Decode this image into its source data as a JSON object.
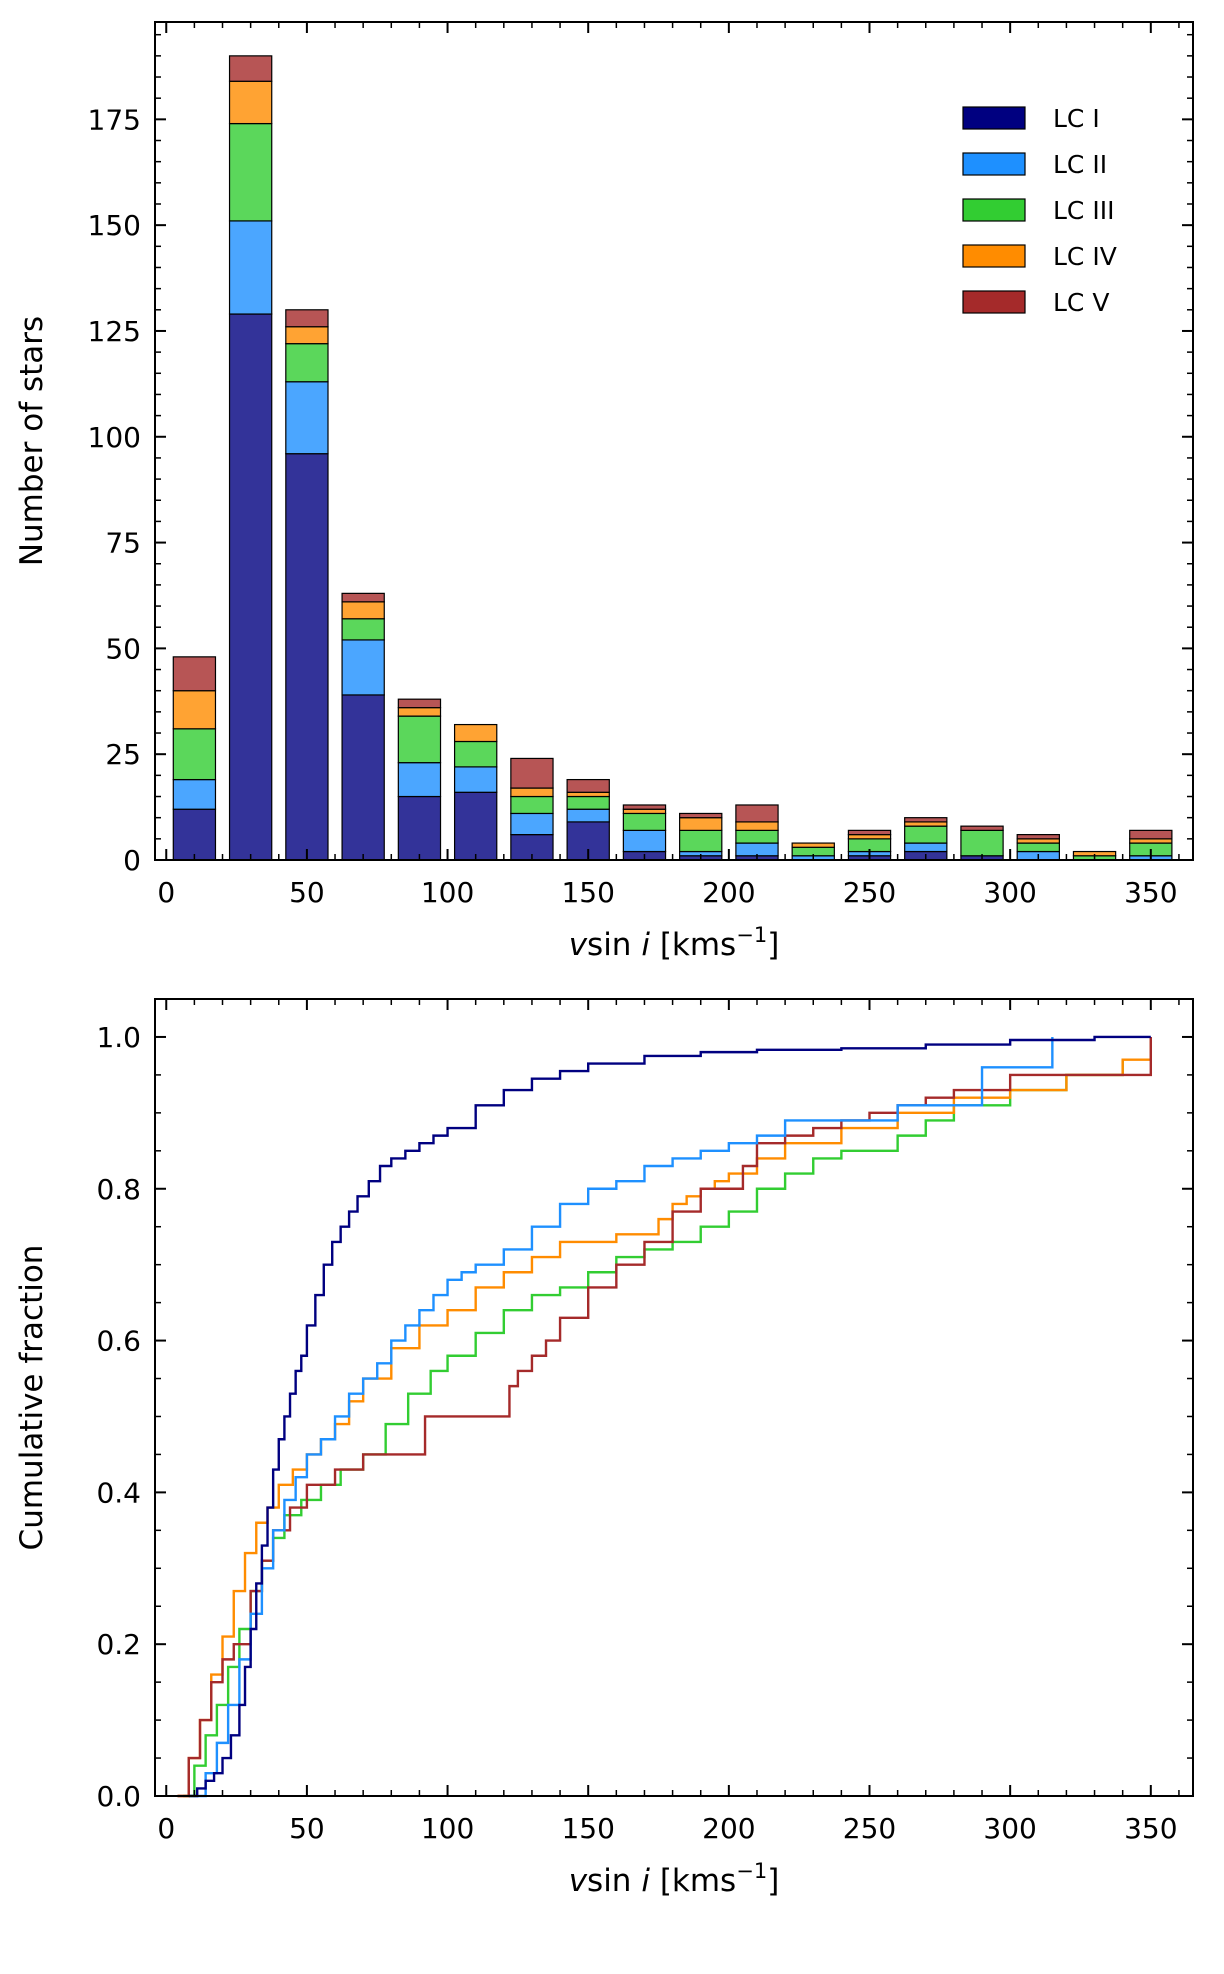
{
  "chart_data": [
    {
      "type": "bar",
      "stacked": true,
      "title": "",
      "xlabel_var": "v",
      "xlabel_sin": "sin",
      "xlabel_i": "i",
      "xlabel_unit": "[kms",
      "xlabel_exp": "−1",
      "xlabel_close": "]",
      "ylabel": "Number of stars",
      "xlim": [
        -4,
        365
      ],
      "ylim": [
        0,
        198
      ],
      "bin_width": 20,
      "bar_width": 15,
      "categories": [
        10,
        30,
        50,
        70,
        90,
        110,
        130,
        150,
        170,
        190,
        210,
        230,
        250,
        270,
        290,
        310,
        330,
        350
      ],
      "xticks": [
        0,
        50,
        100,
        150,
        200,
        250,
        300,
        350
      ],
      "xtick_labels": [
        "0",
        "50",
        "100",
        "150",
        "200",
        "250",
        "300",
        "350"
      ],
      "yticks": [
        0,
        25,
        50,
        75,
        100,
        125,
        150,
        175
      ],
      "ytick_labels": [
        "0",
        "25",
        "50",
        "75",
        "100",
        "125",
        "150",
        "175"
      ],
      "legend_position": "upper right",
      "series": [
        {
          "name": "LC I",
          "color": "#000080",
          "fill": "#333399",
          "values": [
            12,
            129,
            96,
            39,
            15,
            16,
            6,
            9,
            2,
            1,
            1,
            0,
            1,
            2,
            1,
            0,
            0,
            0
          ]
        },
        {
          "name": "LC II",
          "color": "#1e90ff",
          "fill": "#4ba6ff",
          "values": [
            7,
            22,
            17,
            13,
            8,
            6,
            5,
            3,
            5,
            1,
            3,
            1,
            1,
            2,
            0,
            2,
            0,
            1
          ]
        },
        {
          "name": "LC III",
          "color": "#32cd32",
          "fill": "#5bd75b",
          "values": [
            12,
            23,
            9,
            5,
            11,
            6,
            4,
            3,
            4,
            5,
            3,
            2,
            3,
            4,
            6,
            2,
            1,
            3
          ]
        },
        {
          "name": "LC IV",
          "color": "#ff8c00",
          "fill": "#ffa333",
          "values": [
            9,
            10,
            4,
            4,
            2,
            4,
            2,
            1,
            1,
            3,
            2,
            1,
            1,
            1,
            0,
            1,
            1,
            1
          ]
        },
        {
          "name": "LC V",
          "color": "#a52a2a",
          "fill": "#b75555",
          "values": [
            8,
            6,
            4,
            2,
            2,
            0,
            7,
            3,
            1,
            1,
            4,
            0,
            1,
            1,
            1,
            1,
            0,
            2
          ]
        }
      ]
    },
    {
      "type": "line",
      "step": true,
      "title": "",
      "xlabel_var": "v",
      "xlabel_sin": "sin",
      "xlabel_i": "i",
      "xlabel_unit": "[kms",
      "xlabel_exp": "−1",
      "xlabel_close": "]",
      "ylabel": "Cumulative fraction",
      "xlim": [
        -4,
        365
      ],
      "ylim": [
        0,
        1.05
      ],
      "xticks": [
        0,
        50,
        100,
        150,
        200,
        250,
        300,
        350
      ],
      "xtick_labels": [
        "0",
        "50",
        "100",
        "150",
        "200",
        "250",
        "300",
        "350"
      ],
      "yticks": [
        0,
        0.2,
        0.4,
        0.6,
        0.8,
        1.0
      ],
      "ytick_labels": [
        "0.0",
        "0.2",
        "0.4",
        "0.6",
        "0.8",
        "1.0"
      ],
      "series": [
        {
          "name": "LC I",
          "color": "#000080",
          "x": [
            8,
            11,
            14,
            17,
            20,
            23,
            26,
            28,
            30,
            32,
            34,
            36,
            38,
            40,
            42,
            44,
            46,
            48,
            50,
            53,
            56,
            59,
            62,
            65,
            68,
            72,
            76,
            80,
            85,
            90,
            95,
            100,
            110,
            120,
            130,
            140,
            150,
            170,
            190,
            210,
            240,
            270,
            300,
            330,
            350
          ],
          "y": [
            0,
            0.01,
            0.02,
            0.03,
            0.05,
            0.08,
            0.12,
            0.17,
            0.22,
            0.28,
            0.33,
            0.38,
            0.43,
            0.47,
            0.5,
            0.53,
            0.56,
            0.58,
            0.62,
            0.66,
            0.7,
            0.73,
            0.75,
            0.77,
            0.79,
            0.81,
            0.83,
            0.84,
            0.85,
            0.86,
            0.87,
            0.88,
            0.91,
            0.93,
            0.945,
            0.955,
            0.965,
            0.975,
            0.98,
            0.983,
            0.985,
            0.99,
            0.996,
            1.0,
            1.0
          ]
        },
        {
          "name": "LC II",
          "color": "#1e90ff",
          "x": [
            10,
            14,
            18,
            22,
            26,
            30,
            34,
            38,
            42,
            46,
            50,
            55,
            60,
            65,
            70,
            75,
            80,
            85,
            90,
            95,
            100,
            105,
            110,
            120,
            130,
            140,
            150,
            160,
            170,
            180,
            190,
            200,
            210,
            220,
            260,
            290,
            315
          ],
          "y": [
            0,
            0.03,
            0.07,
            0.12,
            0.18,
            0.24,
            0.3,
            0.35,
            0.39,
            0.42,
            0.45,
            0.47,
            0.5,
            0.53,
            0.55,
            0.57,
            0.6,
            0.62,
            0.64,
            0.66,
            0.68,
            0.69,
            0.7,
            0.72,
            0.75,
            0.78,
            0.8,
            0.81,
            0.83,
            0.84,
            0.85,
            0.86,
            0.87,
            0.89,
            0.91,
            0.96,
            1.0
          ]
        },
        {
          "name": "LC III",
          "color": "#32cd32",
          "x": [
            6,
            10,
            14,
            18,
            22,
            26,
            30,
            34,
            38,
            42,
            48,
            55,
            62,
            70,
            78,
            86,
            94,
            100,
            110,
            120,
            130,
            140,
            150,
            160,
            170,
            180,
            190,
            200,
            210,
            220,
            230,
            240,
            260,
            270,
            280,
            300,
            320,
            340
          ],
          "y": [
            0,
            0.04,
            0.08,
            0.12,
            0.17,
            0.22,
            0.27,
            0.31,
            0.34,
            0.37,
            0.39,
            0.41,
            0.43,
            0.45,
            0.49,
            0.53,
            0.56,
            0.58,
            0.61,
            0.64,
            0.66,
            0.67,
            0.69,
            0.71,
            0.72,
            0.73,
            0.75,
            0.77,
            0.8,
            0.82,
            0.84,
            0.85,
            0.87,
            0.89,
            0.91,
            0.93,
            0.95,
            0.97
          ]
        },
        {
          "name": "LC IV",
          "color": "#ff8c00",
          "x": [
            4,
            8,
            12,
            16,
            20,
            24,
            28,
            32,
            36,
            40,
            45,
            50,
            55,
            60,
            65,
            70,
            80,
            90,
            100,
            110,
            120,
            130,
            140,
            160,
            175,
            180,
            185,
            190,
            195,
            200,
            210,
            220,
            240,
            260,
            280,
            300,
            320,
            340,
            350
          ],
          "y": [
            0,
            0.05,
            0.1,
            0.16,
            0.21,
            0.27,
            0.32,
            0.36,
            0.38,
            0.41,
            0.43,
            0.45,
            0.47,
            0.49,
            0.52,
            0.55,
            0.59,
            0.62,
            0.64,
            0.67,
            0.69,
            0.71,
            0.73,
            0.74,
            0.76,
            0.78,
            0.79,
            0.8,
            0.81,
            0.82,
            0.84,
            0.86,
            0.88,
            0.9,
            0.92,
            0.93,
            0.95,
            0.97,
            1.0
          ]
        },
        {
          "name": "LC V",
          "color": "#a52a2a",
          "x": [
            4,
            8,
            12,
            16,
            20,
            24,
            30,
            34,
            38,
            44,
            50,
            60,
            70,
            92,
            122,
            125,
            130,
            135,
            140,
            150,
            160,
            170,
            180,
            190,
            205,
            210,
            220,
            230,
            240,
            250,
            260,
            270,
            280,
            300,
            350
          ],
          "y": [
            0,
            0.05,
            0.1,
            0.15,
            0.18,
            0.2,
            0.27,
            0.31,
            0.35,
            0.38,
            0.41,
            0.43,
            0.45,
            0.5,
            0.54,
            0.56,
            0.58,
            0.6,
            0.63,
            0.67,
            0.7,
            0.73,
            0.77,
            0.8,
            0.83,
            0.86,
            0.87,
            0.88,
            0.89,
            0.9,
            0.91,
            0.92,
            0.93,
            0.95,
            1.0
          ]
        }
      ]
    }
  ]
}
